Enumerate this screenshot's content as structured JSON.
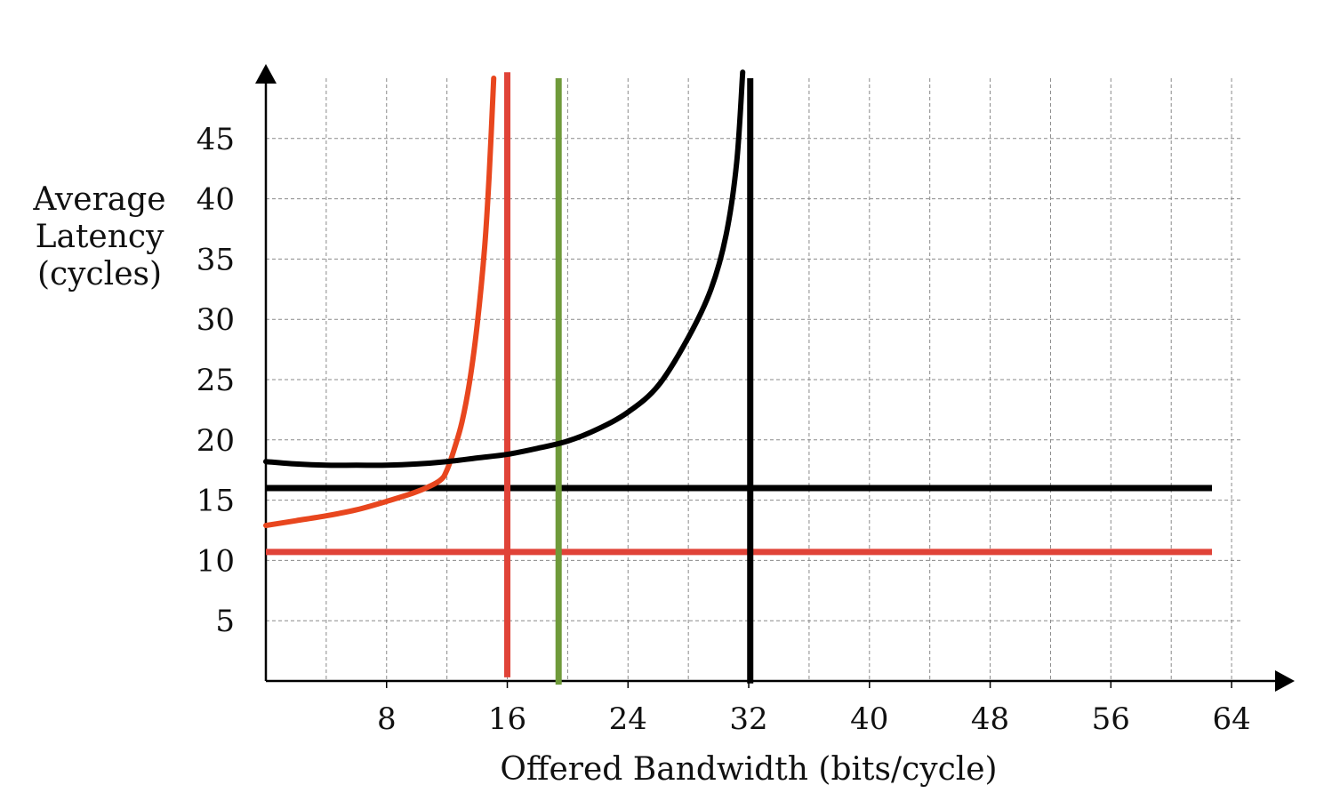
{
  "chart_data": {
    "type": "line",
    "xlabel": "Offered Bandwidth (bits/cycle)",
    "ylabel": [
      "Average",
      "Latency",
      "(cycles)"
    ],
    "xlim": [
      0,
      66
    ],
    "ylim": [
      0,
      50
    ],
    "x_ticks": [
      8,
      16,
      24,
      32,
      40,
      48,
      56,
      64
    ],
    "y_ticks": [
      5,
      10,
      15,
      20,
      25,
      30,
      35,
      40,
      45
    ],
    "x_grid": [
      4,
      8,
      12,
      16,
      20,
      24,
      28,
      32,
      36,
      40,
      44,
      48,
      52,
      56,
      60,
      64
    ],
    "y_grid": [
      5,
      10,
      15,
      20,
      25,
      30,
      35,
      40,
      45
    ],
    "grid": true,
    "colors": {
      "orange": "#e8461e",
      "red": "#e04338",
      "green": "#6f9a3a",
      "black": "#000000"
    },
    "series": [
      {
        "color": "orange",
        "points": [
          [
            0,
            12.9
          ],
          [
            2,
            13.3
          ],
          [
            4,
            13.7
          ],
          [
            6,
            14.2
          ],
          [
            8,
            14.9
          ],
          [
            10,
            15.7
          ],
          [
            11.5,
            16.6
          ],
          [
            12,
            17.5
          ],
          [
            12.5,
            19.3
          ],
          [
            13,
            21.5
          ],
          [
            13.5,
            24.8
          ],
          [
            14,
            29.5
          ],
          [
            14.5,
            36
          ],
          [
            14.8,
            42
          ],
          [
            15.1,
            50
          ]
        ]
      },
      {
        "color": "black",
        "points": [
          [
            0,
            18.2
          ],
          [
            2,
            18.0
          ],
          [
            4,
            17.9
          ],
          [
            6,
            17.9
          ],
          [
            8,
            17.9
          ],
          [
            10,
            18.0
          ],
          [
            12,
            18.2
          ],
          [
            14,
            18.5
          ],
          [
            16,
            18.8
          ],
          [
            18,
            19.3
          ],
          [
            20,
            19.9
          ],
          [
            22,
            20.9
          ],
          [
            24,
            22.3
          ],
          [
            26,
            24.5
          ],
          [
            28,
            28.5
          ],
          [
            29.5,
            32.5
          ],
          [
            30.5,
            37
          ],
          [
            31.2,
            43
          ],
          [
            31.6,
            50.5
          ]
        ]
      }
    ],
    "hlines": [
      {
        "y": 16,
        "color": "black",
        "x_range": [
          0,
          62.7
        ]
      },
      {
        "y": 10.7,
        "color": "red",
        "x_range": [
          0,
          62.7
        ]
      }
    ],
    "vlines": [
      {
        "x": 16,
        "color": "red",
        "y_range": [
          0.3,
          50.5
        ]
      },
      {
        "x": 19.4,
        "color": "green",
        "y_range": [
          -0.3,
          50
        ]
      },
      {
        "x": 32.1,
        "color": "black",
        "y_range": [
          -0.2,
          50
        ]
      }
    ]
  }
}
